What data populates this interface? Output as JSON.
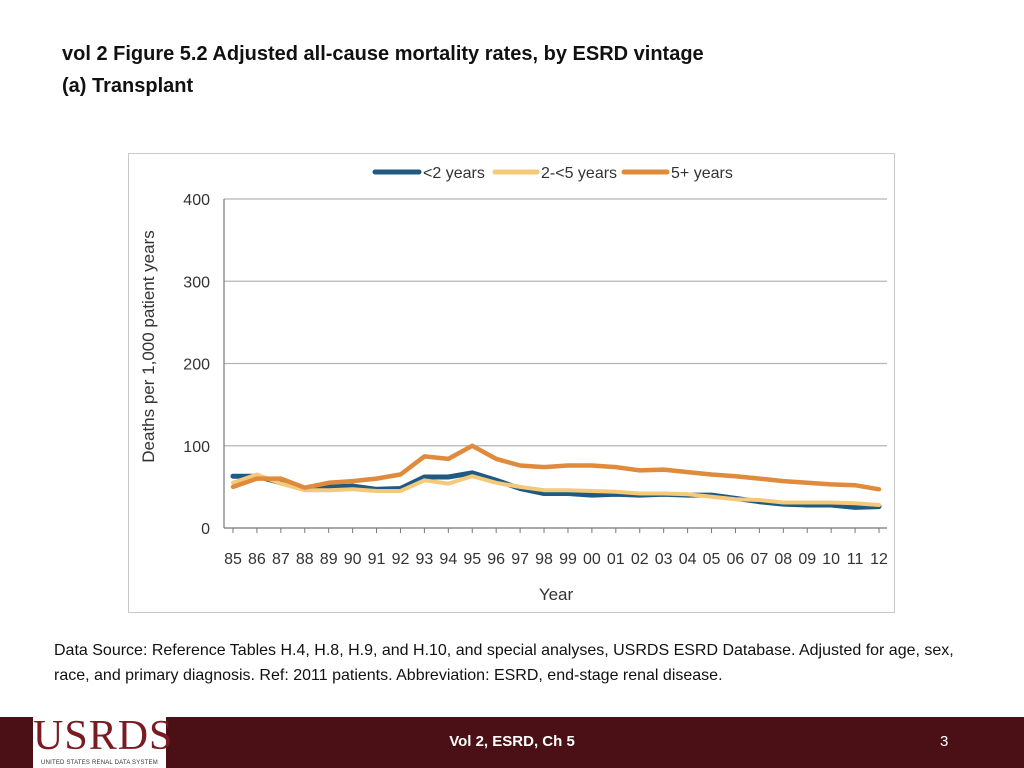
{
  "slide": {
    "title_line1": "vol 2  Figure 5.2 Adjusted all-cause mortality rates, by ESRD vintage",
    "title_line2": "(a) Transplant",
    "caption": "Data Source: Reference Tables H.4, H.8, H.9, and H.10, and special analyses, USRDS ESRD Database. Adjusted for age, sex, race, and primary diagnosis. Ref: 2011 patients. Abbreviation: ESRD, end-stage renal disease.",
    "footer_center": "Vol 2, ESRD, Ch 5",
    "page_number": "3",
    "logo_text": "USRDS",
    "logo_subtext": "UNITED STATES RENAL DATA SYSTEM"
  },
  "colors": {
    "footer_bg": "#4a1016",
    "logo": "#7a1a22"
  },
  "chart_data": {
    "type": "line",
    "title": "",
    "xlabel": "Year",
    "ylabel": "Deaths per 1,000 patient years",
    "ylim": [
      0,
      400
    ],
    "yticks": [
      0,
      100,
      200,
      300,
      400
    ],
    "grid": true,
    "legend_position": "top",
    "categories": [
      "85",
      "86",
      "87",
      "88",
      "89",
      "90",
      "91",
      "92",
      "93",
      "94",
      "95",
      "96",
      "97",
      "98",
      "99",
      "00",
      "01",
      "02",
      "03",
      "04",
      "05",
      "06",
      "07",
      "08",
      "09",
      "10",
      "11",
      "12"
    ],
    "series": [
      {
        "name": "<2 years",
        "color": "#1f5a82",
        "values": [
          63,
          63,
          55,
          48,
          50,
          51,
          47,
          48,
          62,
          62,
          67,
          58,
          48,
          42,
          42,
          40,
          41,
          40,
          41,
          40,
          40,
          36,
          32,
          29,
          28,
          28,
          25,
          26
        ]
      },
      {
        "name": "2-<5 years",
        "color": "#f5c97a",
        "values": [
          55,
          65,
          54,
          46,
          46,
          47,
          45,
          45,
          58,
          54,
          63,
          55,
          50,
          46,
          46,
          45,
          44,
          42,
          42,
          41,
          38,
          35,
          34,
          31,
          31,
          31,
          30,
          28
        ]
      },
      {
        "name": "5+ years",
        "color": "#e08a3c",
        "values": [
          50,
          60,
          60,
          49,
          55,
          57,
          60,
          65,
          87,
          84,
          100,
          84,
          76,
          74,
          76,
          76,
          74,
          70,
          71,
          68,
          65,
          63,
          60,
          57,
          55,
          53,
          52,
          47
        ]
      }
    ]
  }
}
